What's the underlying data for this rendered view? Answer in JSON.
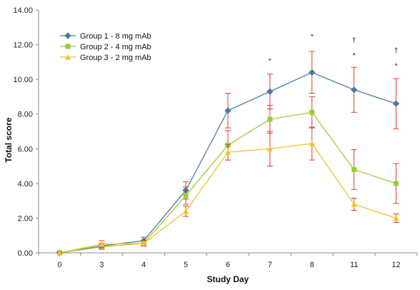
{
  "chart_data": {
    "type": "line",
    "title": "",
    "xlabel": "Study Day",
    "ylabel": "Total score",
    "categories": [
      "0",
      "3",
      "4",
      "5",
      "6",
      "7",
      "8",
      "11",
      "12"
    ],
    "ylim": [
      0,
      14
    ],
    "yticks": [
      "0.00",
      "2.00",
      "4.00",
      "6.00",
      "8.00",
      "10.00",
      "12.00",
      "14.00"
    ],
    "grid": false,
    "legend_position": "top-left",
    "error_bar_color": "#e8382e",
    "series": [
      {
        "name": "Group 1 - 8 mg mAb",
        "color": "#4a7ba6",
        "marker": "diamond",
        "values": [
          0.0,
          0.4,
          0.7,
          3.6,
          8.2,
          9.3,
          10.4,
          9.4,
          8.6
        ],
        "error": [
          0.05,
          0.15,
          0.2,
          0.5,
          1.0,
          1.0,
          1.2,
          1.3,
          1.45
        ]
      },
      {
        "name": "Group 2 - 4 mg mAb",
        "color": "#9acd32",
        "marker": "square",
        "values": [
          0.0,
          0.35,
          0.55,
          3.3,
          6.2,
          7.7,
          8.1,
          4.8,
          4.0
        ],
        "error": [
          0.05,
          0.15,
          0.15,
          0.5,
          0.85,
          0.8,
          0.9,
          1.15,
          1.15
        ]
      },
      {
        "name": "Group 3 - 2 mg mAb",
        "color": "#f2c029",
        "marker": "triangle",
        "values": [
          0.0,
          0.5,
          0.55,
          2.4,
          5.8,
          6.0,
          6.3,
          2.8,
          2.0
        ],
        "error": [
          0.05,
          0.2,
          0.15,
          0.3,
          0.45,
          1.0,
          0.95,
          0.35,
          0.25
        ]
      }
    ],
    "annotations": [
      {
        "category": "7",
        "text": "*",
        "y": 11.1
      },
      {
        "category": "8",
        "text": "*",
        "y": 12.5
      },
      {
        "category": "11",
        "text": "*",
        "y": 11.4
      },
      {
        "category": "11",
        "text": "†",
        "y": 12.3
      },
      {
        "category": "12",
        "text": "*",
        "y": 10.8
      },
      {
        "category": "12",
        "text": "†",
        "y": 11.7
      }
    ]
  }
}
